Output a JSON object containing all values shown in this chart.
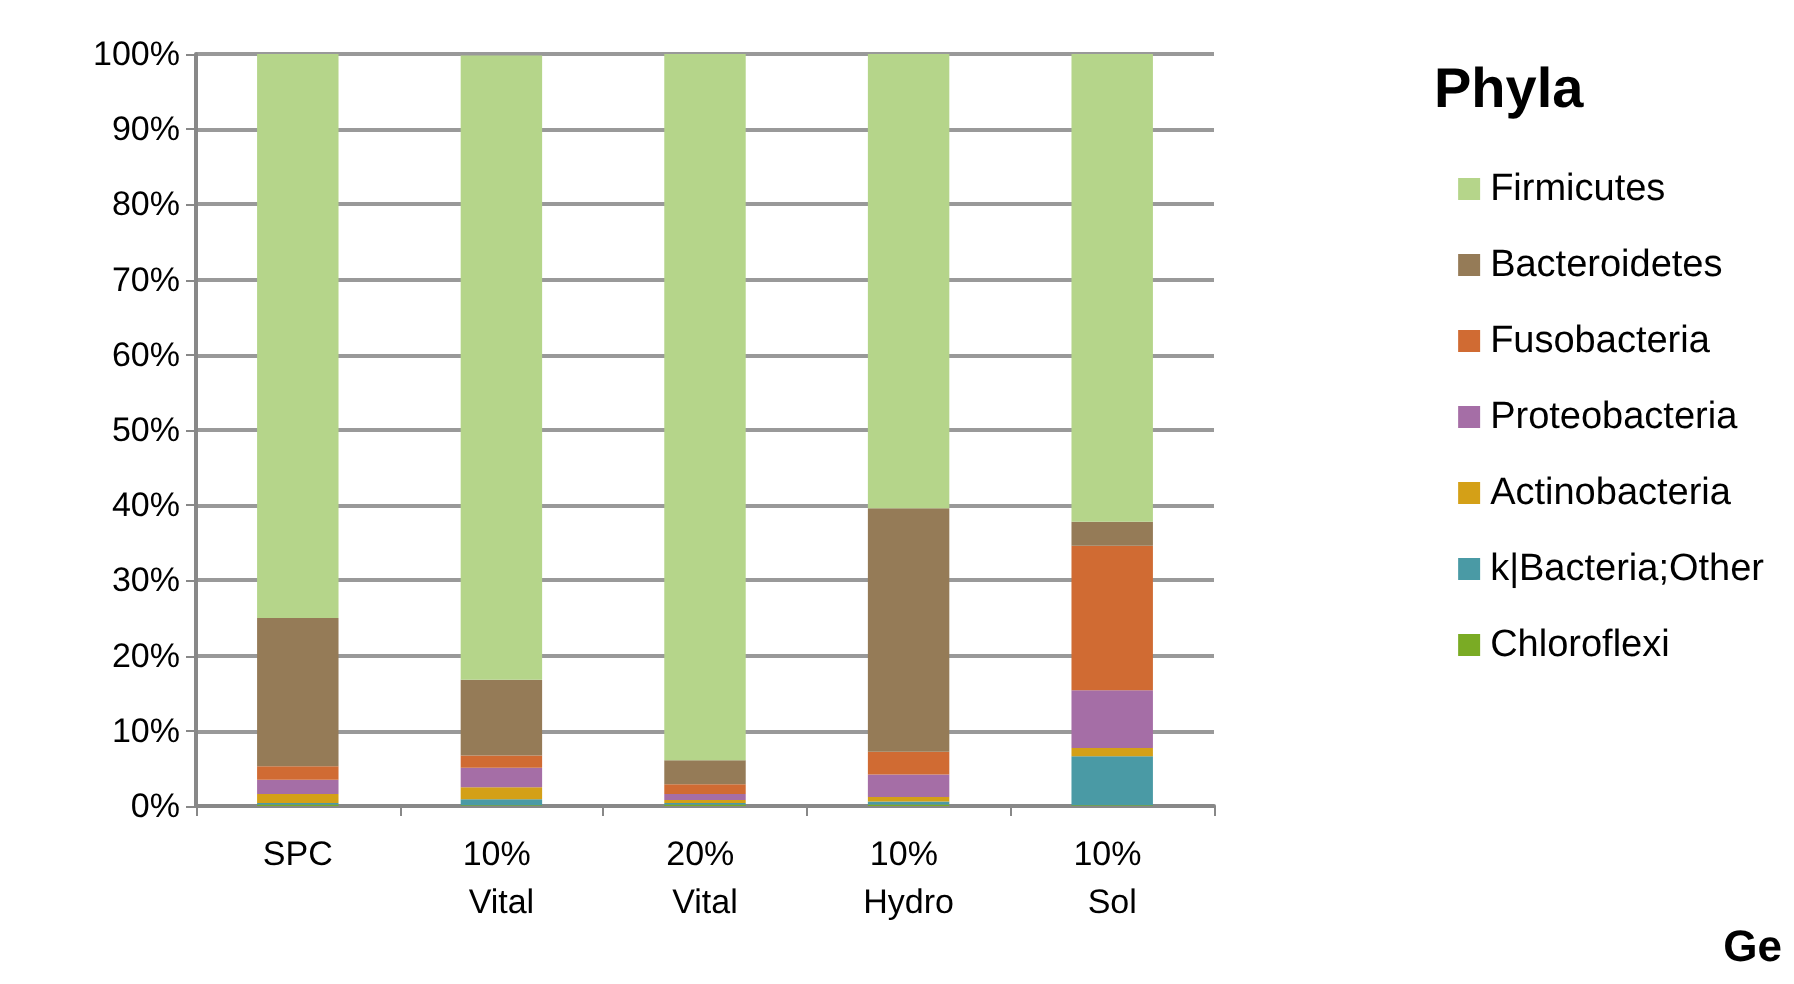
{
  "chart_data": {
    "type": "bar",
    "stacked": true,
    "legend_title": "Phyla",
    "legend": "right",
    "grid": "y",
    "categories": [
      "SPC",
      "10% Vital",
      "20% Vital",
      "10% Hydro",
      "10% Sol"
    ],
    "ylim": [
      0,
      100
    ],
    "yticks": [
      {
        "value": 0,
        "label": "0%"
      },
      {
        "value": 10,
        "label": "10%"
      },
      {
        "value": 20,
        "label": "20%"
      },
      {
        "value": 30,
        "label": "30%"
      },
      {
        "value": 40,
        "label": "40%"
      },
      {
        "value": 50,
        "label": "50%"
      },
      {
        "value": 60,
        "label": "60%"
      },
      {
        "value": 70,
        "label": "70%"
      },
      {
        "value": 80,
        "label": "80%"
      },
      {
        "value": 90,
        "label": "90%"
      },
      {
        "value": 100,
        "label": "100%"
      }
    ],
    "series": [
      {
        "name": "Chloroflexi",
        "color": "#7aab24",
        "values": [
          0.2,
          0.1,
          0.2,
          0.2,
          0.1
        ]
      },
      {
        "name": "k|Bacteria;Other",
        "color": "#4a9aa5",
        "values": [
          0.2,
          0.8,
          0.2,
          0.4,
          6.5
        ]
      },
      {
        "name": "Actinobacteria",
        "color": "#d4a017",
        "values": [
          1.2,
          1.6,
          0.4,
          0.6,
          1.1
        ]
      },
      {
        "name": "Proteobacteria",
        "color": "#a56ea6",
        "values": [
          1.9,
          2.6,
          0.8,
          3.0,
          7.7
        ]
      },
      {
        "name": "Fusobacteria",
        "color": "#d06b33",
        "values": [
          1.8,
          1.6,
          1.3,
          3.0,
          19.2
        ]
      },
      {
        "name": "Bacteroidetes",
        "color": "#957b57",
        "values": [
          19.7,
          10.1,
          3.2,
          32.4,
          3.2
        ]
      },
      {
        "name": "Firmicutes",
        "color": "#b5d58a",
        "values": [
          75.0,
          83.0,
          93.9,
          60.4,
          62.2
        ]
      }
    ],
    "annotations": [
      "Ge"
    ]
  }
}
